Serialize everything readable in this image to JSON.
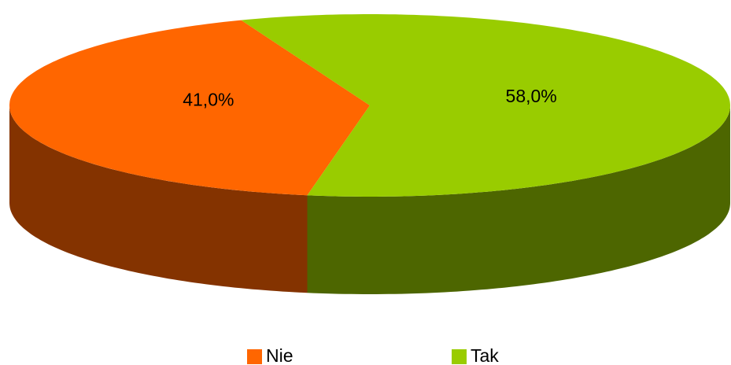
{
  "chart_data": {
    "type": "pie3d",
    "categories": [
      "Nie",
      "Tak"
    ],
    "values": [
      41.0,
      58.0
    ],
    "value_labels": [
      "41,0%",
      "58,0%"
    ],
    "colors": [
      "#ff6600",
      "#99cc00"
    ],
    "side_colors": [
      "#843300",
      "#4d6600"
    ],
    "legend": "bottom"
  }
}
